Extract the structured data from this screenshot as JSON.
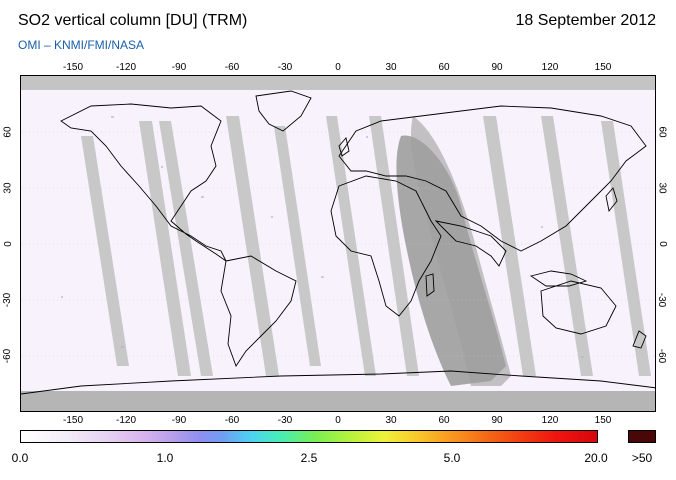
{
  "header": {
    "title": "SO2 vertical column [DU] (TRM)",
    "date": "18 September 2012",
    "credit": "OMI  –  KNMI/FMI/NASA"
  },
  "map": {
    "lon_ticks": [
      "-150",
      "-120",
      "-90",
      "-60",
      "-30",
      "0",
      "30",
      "60",
      "90",
      "120",
      "150"
    ],
    "lat_ticks": [
      "60",
      "30",
      "0",
      "-30",
      "-60"
    ],
    "colors": {
      "background": "#f7f2fb",
      "no_data": "#bdbdbd",
      "terminator": "#a8a8a8",
      "coast": "#000000"
    }
  },
  "legend": {
    "labels": [
      "0.0",
      "1.0",
      "2.5",
      "5.0",
      "20.0"
    ],
    "overflow_label": ">50",
    "overflow_color": "#4a0707"
  }
}
